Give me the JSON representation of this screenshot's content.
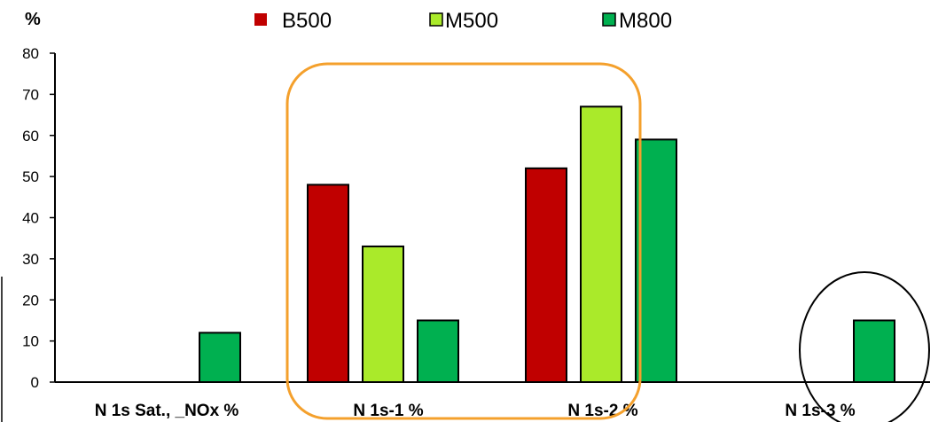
{
  "chart_data": {
    "type": "bar",
    "ylabel": "%",
    "ylim": [
      0,
      80
    ],
    "yticks": [
      0,
      10,
      20,
      30,
      40,
      50,
      60,
      70,
      80
    ],
    "categories": [
      "N 1s Sat., _NOx %",
      "N 1s-1 %",
      "N 1s-2 %",
      "N 1s-3 %"
    ],
    "series": [
      {
        "name": "B500",
        "color": "#c00000",
        "values": [
          0,
          48,
          52,
          0
        ]
      },
      {
        "name": "M500",
        "color": "#aaea2a",
        "values": [
          0,
          33,
          67,
          0
        ]
      },
      {
        "name": "M800",
        "color": "#00b050",
        "values": [
          12,
          15,
          59,
          15
        ]
      }
    ],
    "legend_position": "top",
    "grid": false,
    "annotations": [
      {
        "shape": "rounded-rectangle",
        "color": "#f4a02c",
        "encloses": "N 1s-1 % and N 1s-2 % (B500, M500)"
      },
      {
        "shape": "ellipse",
        "color": "#000000",
        "encloses": "N 1s-3 %"
      }
    ]
  }
}
